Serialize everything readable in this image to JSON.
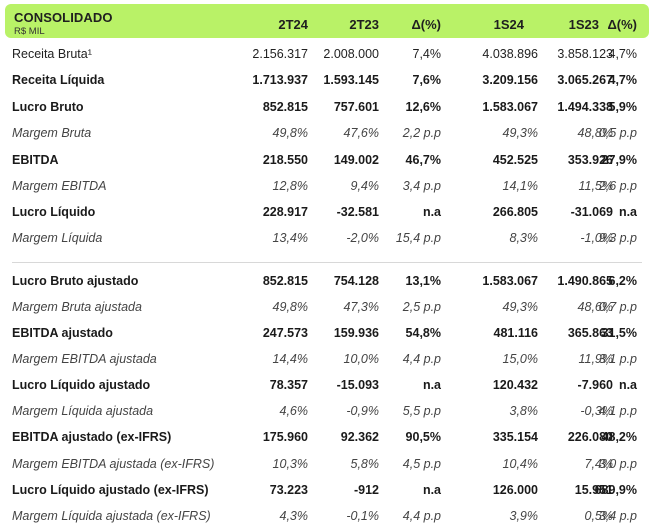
{
  "header": {
    "title": "CONSOLIDADO",
    "subtitle": "R$ MIL",
    "columns": [
      "2T24",
      "2T23",
      "Δ(%)",
      "1S24",
      "1S23",
      "Δ(%)"
    ]
  },
  "rows": [
    {
      "label": "Receita Bruta¹",
      "style": "normal",
      "values": [
        "2.156.317",
        "2.008.000",
        "7,4%",
        "4.038.896",
        "3.858.123",
        "4,7%"
      ]
    },
    {
      "label": "Receita Líquida",
      "style": "bold",
      "values": [
        "1.713.937",
        "1.593.145",
        "7,6%",
        "3.209.156",
        "3.065.267",
        "4,7%"
      ]
    },
    {
      "label": "Lucro Bruto",
      "style": "bold",
      "values": [
        "852.815",
        "757.601",
        "12,6%",
        "1.583.067",
        "1.494.338",
        "5,9%"
      ]
    },
    {
      "label": "Margem Bruta",
      "style": "italic",
      "values": [
        "49,8%",
        "47,6%",
        "2,2 p.p",
        "49,3%",
        "48,8%",
        "0,5 p.p"
      ]
    },
    {
      "label": "EBITDA",
      "style": "bold",
      "values": [
        "218.550",
        "149.002",
        "46,7%",
        "452.525",
        "353.926",
        "27,9%"
      ]
    },
    {
      "label": "Margem EBITDA",
      "style": "italic",
      "values": [
        "12,8%",
        "9,4%",
        "3,4 p.p",
        "14,1%",
        "11,5%",
        "2,6 p.p"
      ]
    },
    {
      "label": "Lucro Líquido",
      "style": "bold",
      "values": [
        "228.917",
        "-32.581",
        "n.a",
        "266.805",
        "-31.069",
        "n.a"
      ]
    },
    {
      "label": "Margem Líquida",
      "style": "italic",
      "values": [
        "13,4%",
        "-2,0%",
        "15,4 p.p",
        "8,3%",
        "-1,0%",
        "9,3 p.p"
      ]
    },
    {
      "label": "Lucro Bruto ajustado",
      "style": "bold",
      "values": [
        "852.815",
        "754.128",
        "13,1%",
        "1.583.067",
        "1.490.865",
        "6,2%"
      ]
    },
    {
      "label": "Margem Bruta ajustada",
      "style": "italic",
      "values": [
        "49,8%",
        "47,3%",
        "2,5 p.p",
        "49,3%",
        "48,6%",
        "0,7 p.p"
      ]
    },
    {
      "label": "EBITDA ajustado",
      "style": "bold",
      "values": [
        "247.573",
        "159.936",
        "54,8%",
        "481.116",
        "365.863",
        "31,5%"
      ]
    },
    {
      "label": "Margem EBITDA ajustada",
      "style": "italic",
      "values": [
        "14,4%",
        "10,0%",
        "4,4 p.p",
        "15,0%",
        "11,9%",
        "3,1 p.p"
      ]
    },
    {
      "label": "Lucro Líquido ajustado",
      "style": "bold",
      "values": [
        "78.357",
        "-15.093",
        "n.a",
        "120.432",
        "-7.960",
        "n.a"
      ]
    },
    {
      "label": "Margem Líquida ajustada",
      "style": "italic",
      "values": [
        "4,6%",
        "-0,9%",
        "5,5 p.p",
        "3,8%",
        "-0,3%",
        "4,1 p.p"
      ]
    },
    {
      "label": "EBITDA ajustado (ex-IFRS)",
      "style": "bold",
      "values": [
        "175.960",
        "92.362",
        "90,5%",
        "335.154",
        "226.080",
        "48,2%"
      ]
    },
    {
      "label": "Margem EBITDA ajustada (ex-IFRS)",
      "style": "italic",
      "values": [
        "10,3%",
        "5,8%",
        "4,5 p.p",
        "10,4%",
        "7,4%",
        "3,0 p.p"
      ]
    },
    {
      "label": "Lucro Líquido ajustado (ex-IFRS)",
      "style": "bold",
      "values": [
        "73.223",
        "-912",
        "n.a",
        "126.000",
        "15.951",
        "689,9%"
      ]
    },
    {
      "label": "Margem Líquida ajustada (ex-IFRS)",
      "style": "italic",
      "values": [
        "4,3%",
        "-0,1%",
        "4,4 p.p",
        "3,9%",
        "0,5%",
        "3,4 p.p"
      ]
    }
  ]
}
